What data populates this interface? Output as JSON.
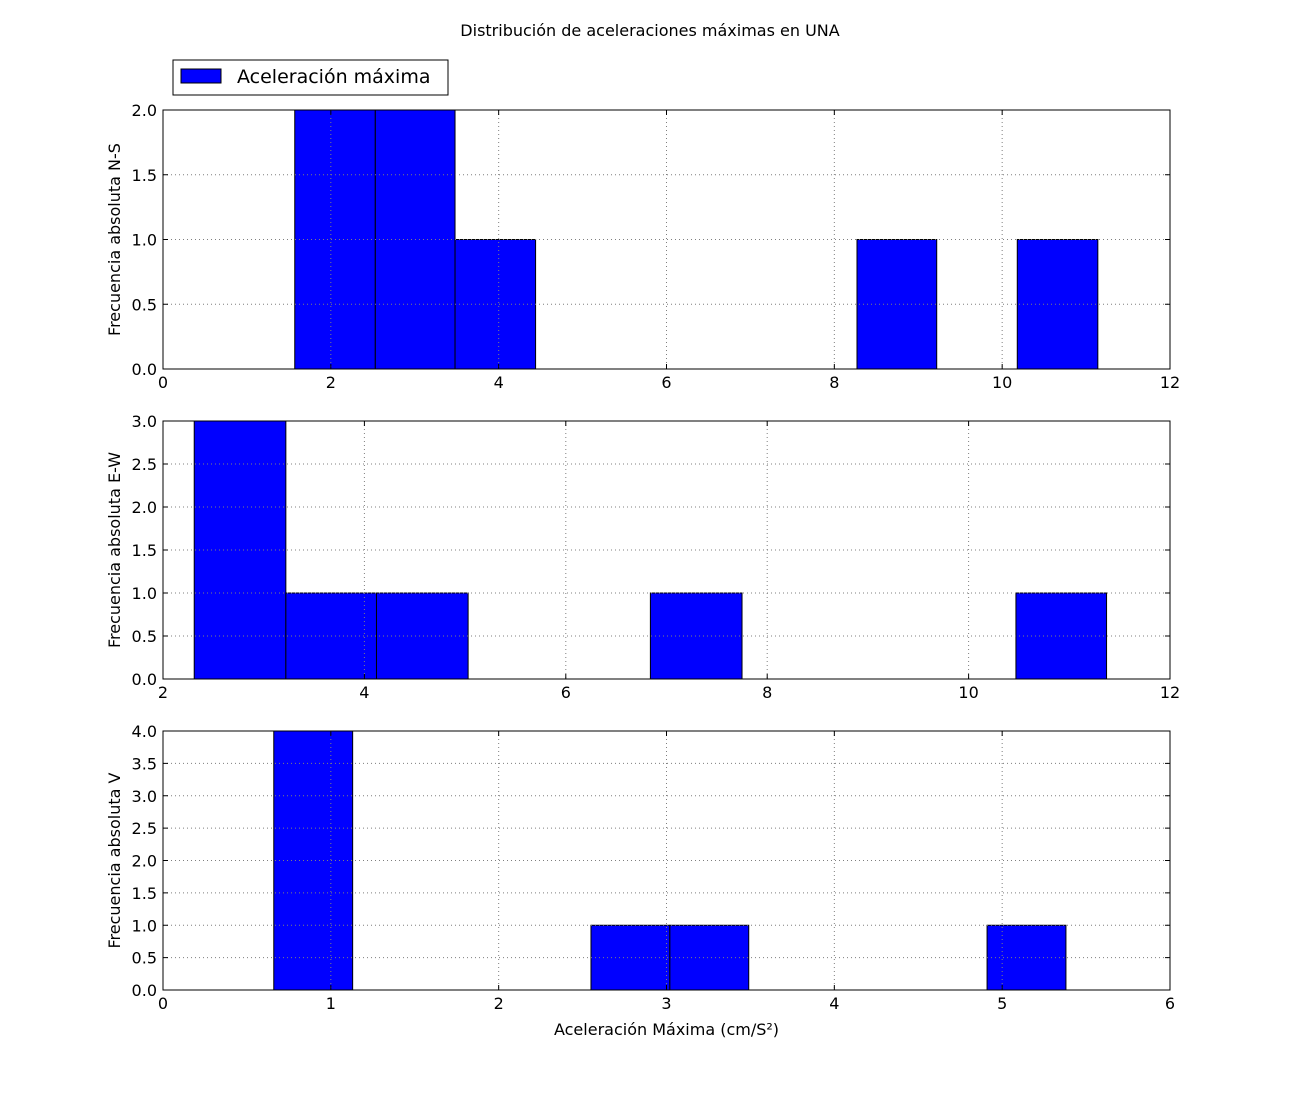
{
  "title": "Distribución de aceleraciones máximas en UNA",
  "legend": {
    "label": "Aceleración máxima",
    "placement": "upper-left"
  },
  "colors": {
    "bar": "#0000ff",
    "edge": "#000000",
    "grid": "#7f7f7f"
  },
  "chart_data": [
    {
      "type": "bar",
      "ylabel": "Frecuencia absoluta N-S",
      "xlabel": "",
      "xlim": [
        0,
        12
      ],
      "ylim": [
        0,
        2
      ],
      "xticks": [
        "0",
        "2",
        "4",
        "6",
        "8",
        "10",
        "12"
      ],
      "yticks": [
        "0.0",
        "0.5",
        "1.0",
        "1.5",
        "2.0"
      ],
      "grid": true,
      "bins": [
        {
          "x0": 1.57,
          "x1": 2.53,
          "count": 2
        },
        {
          "x0": 2.53,
          "x1": 3.48,
          "count": 2
        },
        {
          "x0": 3.48,
          "x1": 4.44,
          "count": 1
        },
        {
          "x0": 4.44,
          "x1": 5.4,
          "count": 0
        },
        {
          "x0": 5.4,
          "x1": 6.35,
          "count": 0
        },
        {
          "x0": 6.35,
          "x1": 7.31,
          "count": 0
        },
        {
          "x0": 7.31,
          "x1": 8.27,
          "count": 0
        },
        {
          "x0": 8.27,
          "x1": 9.22,
          "count": 1
        },
        {
          "x0": 9.22,
          "x1": 10.18,
          "count": 0
        },
        {
          "x0": 10.18,
          "x1": 11.14,
          "count": 1
        }
      ]
    },
    {
      "type": "bar",
      "ylabel": "Frecuencia absoluta E-W",
      "xlabel": "",
      "xlim": [
        2,
        12
      ],
      "ylim": [
        0,
        3
      ],
      "xticks": [
        "2",
        "4",
        "6",
        "8",
        "10",
        "12"
      ],
      "yticks": [
        "0.0",
        "0.5",
        "1.0",
        "1.5",
        "2.0",
        "2.5",
        "3.0"
      ],
      "grid": true,
      "bins": [
        {
          "x0": 2.31,
          "x1": 3.22,
          "count": 3
        },
        {
          "x0": 3.22,
          "x1": 4.12,
          "count": 1
        },
        {
          "x0": 4.12,
          "x1": 5.03,
          "count": 1
        },
        {
          "x0": 5.03,
          "x1": 5.93,
          "count": 0
        },
        {
          "x0": 5.93,
          "x1": 6.84,
          "count": 0
        },
        {
          "x0": 6.84,
          "x1": 7.75,
          "count": 1
        },
        {
          "x0": 7.75,
          "x1": 8.65,
          "count": 0
        },
        {
          "x0": 8.65,
          "x1": 9.56,
          "count": 0
        },
        {
          "x0": 9.56,
          "x1": 10.47,
          "count": 0
        },
        {
          "x0": 10.47,
          "x1": 11.37,
          "count": 1
        }
      ]
    },
    {
      "type": "bar",
      "ylabel": "Frecuencia absoluta V",
      "xlabel": "Aceleración Máxima (cm/S²)",
      "xlim": [
        0,
        6
      ],
      "ylim": [
        0,
        4
      ],
      "xticks": [
        "0",
        "1",
        "2",
        "3",
        "4",
        "5",
        "6"
      ],
      "yticks": [
        "0.0",
        "0.5",
        "1.0",
        "1.5",
        "2.0",
        "2.5",
        "3.0",
        "3.5",
        "4.0"
      ],
      "grid": true,
      "bins": [
        {
          "x0": 0.66,
          "x1": 1.13,
          "count": 4
        },
        {
          "x0": 1.13,
          "x1": 1.6,
          "count": 0
        },
        {
          "x0": 1.6,
          "x1": 2.08,
          "count": 0
        },
        {
          "x0": 2.08,
          "x1": 2.55,
          "count": 0
        },
        {
          "x0": 2.55,
          "x1": 3.02,
          "count": 1
        },
        {
          "x0": 3.02,
          "x1": 3.49,
          "count": 1
        },
        {
          "x0": 3.49,
          "x1": 3.96,
          "count": 0
        },
        {
          "x0": 3.96,
          "x1": 4.43,
          "count": 0
        },
        {
          "x0": 4.43,
          "x1": 4.91,
          "count": 0
        },
        {
          "x0": 4.91,
          "x1": 5.38,
          "count": 1
        }
      ]
    }
  ]
}
